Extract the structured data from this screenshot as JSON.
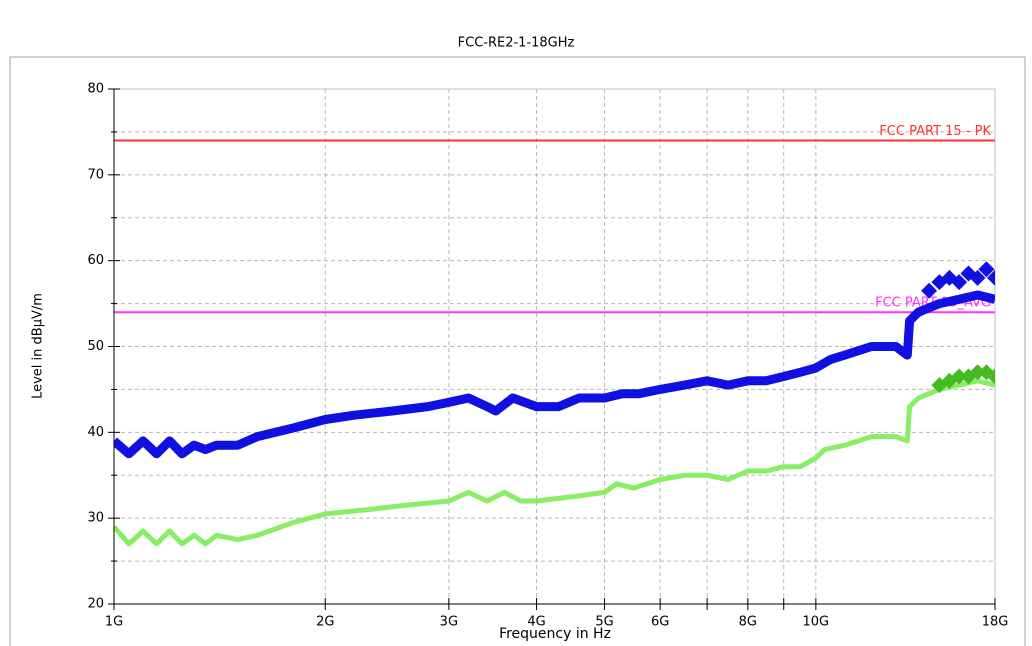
{
  "chart_data": {
    "type": "line",
    "title": "FCC-RE2-1-18GHz",
    "xlabel": "Frequency in Hz",
    "ylabel": "Level in dBµV/m",
    "xscale": "log",
    "grid": true,
    "xlim": [
      1000000000,
      18000000000
    ],
    "ylim": [
      20,
      80
    ],
    "xticks": [
      {
        "value": 1000000000,
        "label": "1G"
      },
      {
        "value": 2000000000,
        "label": "2G"
      },
      {
        "value": 3000000000,
        "label": "3G"
      },
      {
        "value": 4000000000,
        "label": "4G"
      },
      {
        "value": 5000000000,
        "label": "5G"
      },
      {
        "value": 6000000000,
        "label": "6G"
      },
      {
        "value": 8000000000,
        "label": "8G"
      },
      {
        "value": 10000000000,
        "label": "10G"
      },
      {
        "value": 18000000000,
        "label": "18G"
      }
    ],
    "xminorticks": [
      7000000000,
      9000000000
    ],
    "yticks": [
      20,
      30,
      40,
      50,
      60,
      70,
      80
    ],
    "yminorticks": [
      25,
      35,
      45,
      55,
      65,
      75
    ],
    "series": [
      {
        "name": "FCC PART 15 - PK",
        "color": "#ff3333",
        "width": 2,
        "x": [
          1000000000,
          18000000000
        ],
        "values": [
          74,
          74
        ]
      },
      {
        "name": "FCC PART 15_AVG",
        "color": "#ff33ff",
        "width": 2,
        "x": [
          1000000000,
          18000000000
        ],
        "values": [
          54,
          54
        ]
      },
      {
        "color": "#88ee66",
        "width": 5,
        "x": [
          1000000000,
          1050000000,
          1100000000,
          1150000000,
          1200000000,
          1250000000,
          1300000000,
          1350000000,
          1400000000,
          1500000000,
          1600000000,
          1800000000,
          2000000000,
          2300000000,
          2600000000,
          3000000000,
          3200000000,
          3400000000,
          3600000000,
          3800000000,
          4000000000,
          4500000000,
          5000000000,
          5200000000,
          5500000000,
          6000000000,
          6500000000,
          7000000000,
          7500000000,
          8000000000,
          8500000000,
          9000000000,
          9500000000,
          10000000000,
          10300000000,
          11000000000,
          12000000000,
          13000000000,
          13500000000,
          13600000000,
          14000000000,
          15000000000,
          16000000000,
          17000000000,
          18000000000
        ],
        "values": [
          29,
          27,
          28.5,
          27,
          28.5,
          27,
          28,
          27,
          28,
          27.5,
          28,
          29.5,
          30.5,
          31,
          31.5,
          32,
          33,
          32,
          33,
          32,
          32,
          32.5,
          33,
          34,
          33.5,
          34.5,
          35,
          35,
          34.5,
          35.5,
          35.5,
          36,
          36,
          37,
          38,
          38.5,
          39.5,
          39.5,
          39,
          43,
          44,
          45,
          45.5,
          46,
          45.5
        ]
      },
      {
        "color": "#1010e0",
        "width": 9,
        "x": [
          1000000000,
          1050000000,
          1100000000,
          1150000000,
          1200000000,
          1250000000,
          1300000000,
          1350000000,
          1400000000,
          1500000000,
          1600000000,
          1800000000,
          2000000000,
          2200000000,
          2500000000,
          2800000000,
          3000000000,
          3200000000,
          3400000000,
          3500000000,
          3700000000,
          4000000000,
          4300000000,
          4600000000,
          5000000000,
          5300000000,
          5600000000,
          6000000000,
          6500000000,
          7000000000,
          7500000000,
          8000000000,
          8500000000,
          9000000000,
          9500000000,
          10000000000,
          10500000000,
          11000000000,
          12000000000,
          13000000000,
          13500000000,
          13600000000,
          14000000000,
          15000000000,
          16000000000,
          17000000000,
          18000000000
        ],
        "values": [
          39,
          37.5,
          39,
          37.5,
          39,
          37.5,
          38.5,
          38,
          38.5,
          38.5,
          39.5,
          40.5,
          41.5,
          42,
          42.5,
          43,
          43.5,
          44,
          43,
          42.5,
          44,
          43,
          43,
          44,
          44,
          44.5,
          44.5,
          45,
          45.5,
          46,
          45.5,
          46,
          46,
          46.5,
          47,
          47.5,
          48.5,
          49,
          50,
          50,
          49,
          53,
          54,
          55,
          55.5,
          56,
          55.5
        ]
      },
      {
        "color": "#1010e0",
        "marker": "diamond",
        "x": [
          14500000000,
          15000000000,
          15500000000,
          16000000000,
          16500000000,
          17000000000,
          17500000000,
          18000000000
        ],
        "values": [
          56.5,
          57.5,
          58,
          57.5,
          58.5,
          58,
          59,
          58
        ]
      },
      {
        "color": "#44bb22",
        "marker": "diamond",
        "x": [
          15000000000,
          15500000000,
          16000000000,
          16500000000,
          17000000000,
          17500000000,
          18000000000
        ],
        "values": [
          45.5,
          46,
          46.5,
          46.5,
          47,
          47,
          46.5
        ]
      }
    ]
  }
}
